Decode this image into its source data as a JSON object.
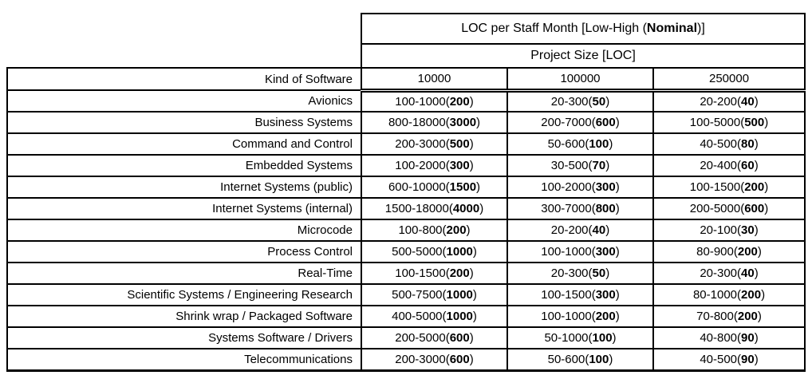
{
  "chart_data": {
    "type": "table",
    "title": {
      "prefix": "LOC per Staff Month [Low-High (",
      "bold": "Nominal",
      "suffix": ")]"
    },
    "subtitle": "Project Size [LOC]",
    "row_header": "Kind of Software",
    "columns": [
      "10000",
      "100000",
      "250000"
    ],
    "rows": [
      {
        "label": "Avionics",
        "cells": [
          {
            "range": "100-1000",
            "nominal": "200"
          },
          {
            "range": "20-300",
            "nominal": "50"
          },
          {
            "range": "20-200",
            "nominal": "40"
          }
        ]
      },
      {
        "label": "Business Systems",
        "cells": [
          {
            "range": "800-18000",
            "nominal": "3000"
          },
          {
            "range": "200-7000",
            "nominal": "600"
          },
          {
            "range": "100-5000",
            "nominal": "500"
          }
        ]
      },
      {
        "label": "Command and Control",
        "cells": [
          {
            "range": "200-3000",
            "nominal": "500"
          },
          {
            "range": "50-600",
            "nominal": "100"
          },
          {
            "range": "40-500",
            "nominal": "80"
          }
        ]
      },
      {
        "label": "Embedded Systems",
        "cells": [
          {
            "range": "100-2000",
            "nominal": "300"
          },
          {
            "range": "30-500",
            "nominal": "70"
          },
          {
            "range": "20-400",
            "nominal": "60"
          }
        ]
      },
      {
        "label": "Internet Systems (public)",
        "cells": [
          {
            "range": "600-10000",
            "nominal": "1500"
          },
          {
            "range": "100-2000",
            "nominal": "300"
          },
          {
            "range": "100-1500",
            "nominal": "200"
          }
        ]
      },
      {
        "label": "Internet Systems (internal)",
        "cells": [
          {
            "range": "1500-18000",
            "nominal": "4000"
          },
          {
            "range": "300-7000",
            "nominal": "800"
          },
          {
            "range": "200-5000",
            "nominal": "600"
          }
        ]
      },
      {
        "label": "Microcode",
        "cells": [
          {
            "range": "100-800",
            "nominal": "200"
          },
          {
            "range": "20-200",
            "nominal": "40"
          },
          {
            "range": "20-100",
            "nominal": "30"
          }
        ]
      },
      {
        "label": "Process Control",
        "cells": [
          {
            "range": "500-5000",
            "nominal": "1000"
          },
          {
            "range": "100-1000",
            "nominal": "300"
          },
          {
            "range": "80-900",
            "nominal": "200"
          }
        ]
      },
      {
        "label": "Real-Time",
        "cells": [
          {
            "range": "100-1500",
            "nominal": "200"
          },
          {
            "range": "20-300",
            "nominal": "50"
          },
          {
            "range": "20-300",
            "nominal": "40"
          }
        ]
      },
      {
        "label": "Scientific Systems / Engineering Research",
        "cells": [
          {
            "range": "500-7500",
            "nominal": "1000"
          },
          {
            "range": "100-1500",
            "nominal": "300"
          },
          {
            "range": "80-1000",
            "nominal": "200"
          }
        ]
      },
      {
        "label": "Shrink wrap / Packaged Software",
        "cells": [
          {
            "range": "400-5000",
            "nominal": "1000"
          },
          {
            "range": "100-1000",
            "nominal": "200"
          },
          {
            "range": "70-800",
            "nominal": "200"
          }
        ]
      },
      {
        "label": "Systems Software / Drivers",
        "cells": [
          {
            "range": "200-5000",
            "nominal": "600"
          },
          {
            "range": "50-1000",
            "nominal": "100"
          },
          {
            "range": "40-800",
            "nominal": "90"
          }
        ]
      },
      {
        "label": "Telecommunications",
        "cells": [
          {
            "range": "200-3000",
            "nominal": "600"
          },
          {
            "range": "50-600",
            "nominal": "100"
          },
          {
            "range": "40-500",
            "nominal": "90"
          }
        ]
      }
    ],
    "colors": {
      "border": "#000000",
      "background": "#ffffff",
      "text": "#000000"
    },
    "layout": {
      "legend": "none",
      "grid": "full-cell-borders",
      "header_separator": "double-rule-under-size-columns"
    }
  }
}
